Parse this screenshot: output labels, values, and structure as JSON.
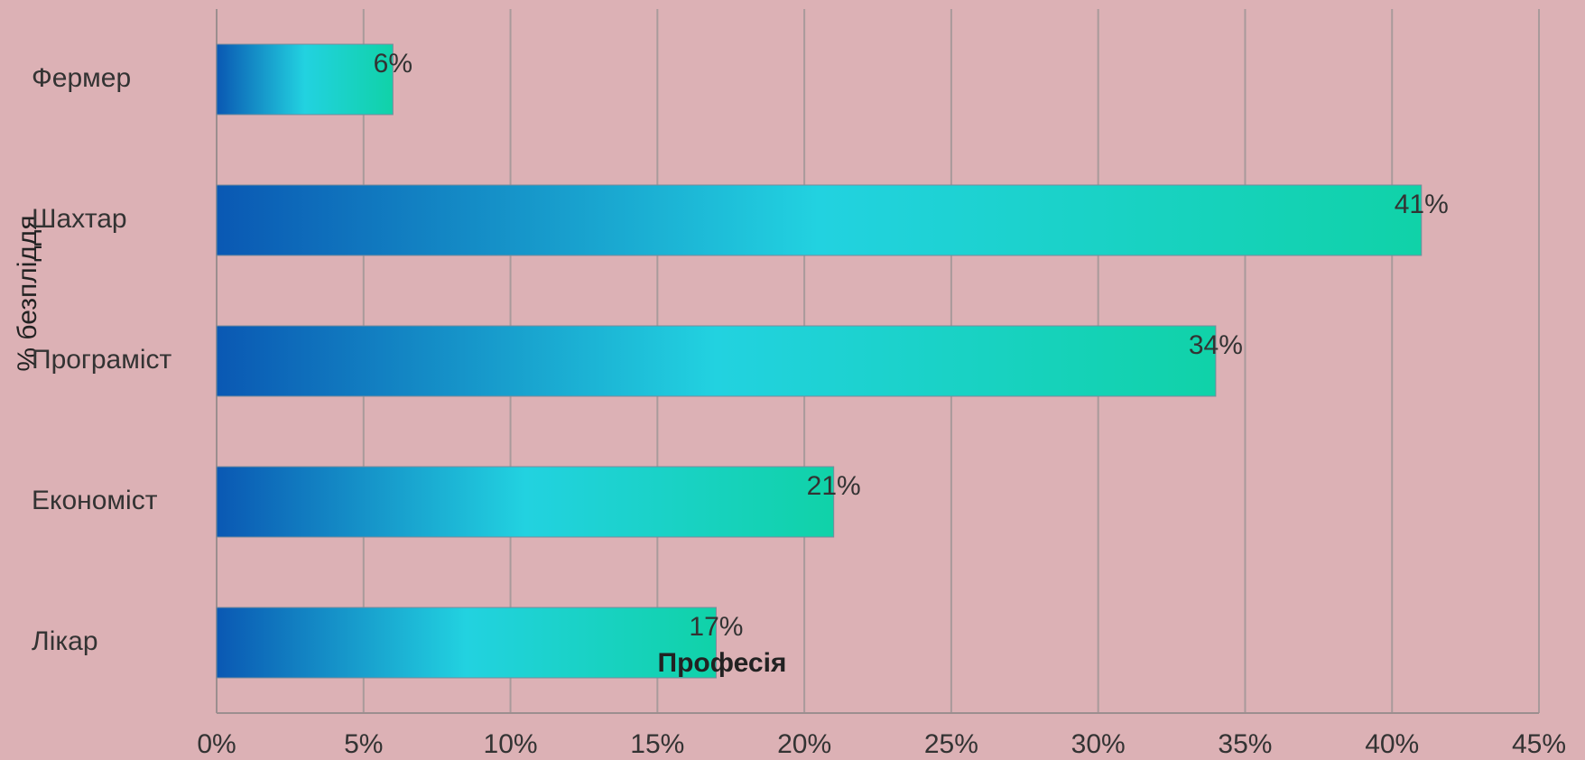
{
  "chart_data": {
    "type": "bar",
    "orientation": "horizontal",
    "x_label": "Професія",
    "y_label": "% безпліддя",
    "categories": [
      "Фермер",
      "Шахтар",
      "Програміст",
      "Економіст",
      "Лікар"
    ],
    "values": [
      6,
      41,
      34,
      21,
      17
    ],
    "value_labels": [
      "6%",
      "41%",
      "34%",
      "21%",
      "17%"
    ],
    "colors": [
      "#0a58b3",
      "#22d2e0",
      "#10d2a8"
    ],
    "xlim": [
      0,
      45
    ],
    "xticks": [
      {
        "value": 0,
        "label": "0%"
      },
      {
        "value": 5,
        "label": "5%"
      },
      {
        "value": 10,
        "label": "10%"
      },
      {
        "value": 15,
        "label": "15%"
      },
      {
        "value": 20,
        "label": "20%"
      },
      {
        "value": 25,
        "label": "25%"
      },
      {
        "value": 30,
        "label": "30%"
      },
      {
        "value": 35,
        "label": "35%"
      },
      {
        "value": 40,
        "label": "40%"
      },
      {
        "value": 45,
        "label": "45%"
      }
    ],
    "grid": true
  }
}
